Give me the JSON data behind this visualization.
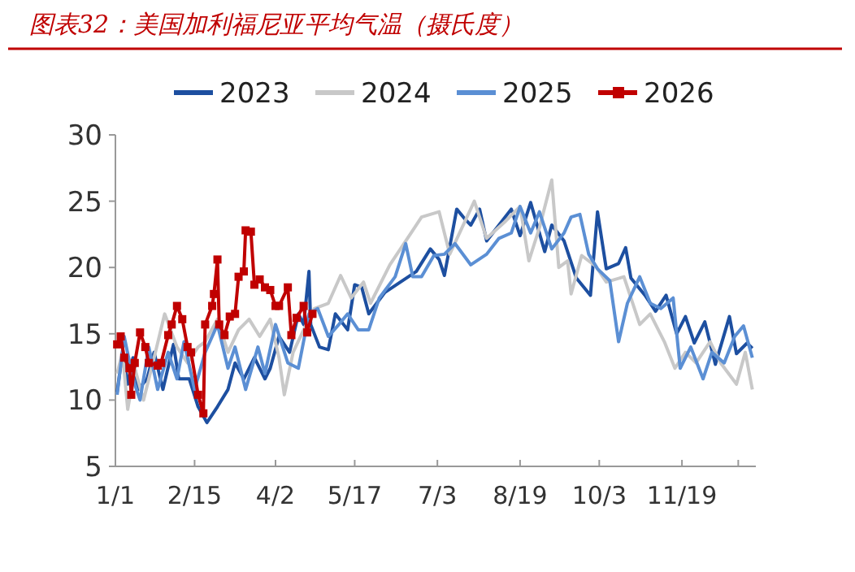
{
  "chart_data": {
    "type": "line",
    "title": "图表32：美国加利福尼亚平均气温（摄氏度）",
    "legend": "top",
    "line_style": "solid",
    "ylim": [
      5,
      30
    ],
    "yticks": [
      5,
      10,
      15,
      20,
      25,
      30
    ],
    "xlim": [
      "--01-01",
      "--12-31"
    ],
    "xticks": [
      {
        "value": "--01-01",
        "label": "1/1"
      },
      {
        "value": "--02-15",
        "label": "2/15"
      },
      {
        "value": "--04-02",
        "label": "4/2"
      },
      {
        "value": "--05-17",
        "label": "5/17"
      },
      {
        "value": "--07-03",
        "label": "7/3"
      },
      {
        "value": "--08-19",
        "label": "8/19"
      },
      {
        "value": "--10-03",
        "label": "10/3"
      },
      {
        "value": "--11-19",
        "label": "11/19"
      },
      {
        "value": "--12-21",
        "label": null
      }
    ],
    "series": [
      {
        "name": "2023",
        "color": "#1d4fa0",
        "marker": "none",
        "x": [
          "--01-02",
          "--01-05",
          "--01-08",
          "--01-11",
          "--01-14",
          "--01-19",
          "--01-23",
          "--01-28",
          "--02-03",
          "--02-06",
          "--02-12",
          "--02-17",
          "--02-22",
          "--02-28",
          "--03-06",
          "--03-10",
          "--03-15",
          "--03-21",
          "--03-27",
          "--03-30",
          "--04-04",
          "--04-10",
          "--04-15",
          "--04-18",
          "--04-21",
          "--04-22",
          "--04-27",
          "--05-02",
          "--05-06",
          "--05-13",
          "--05-17",
          "--05-21",
          "--05-25",
          "--06-03",
          "--06-12",
          "--06-21",
          "--06-29",
          "--07-04",
          "--07-07",
          "--07-14",
          "--07-19",
          "--07-22",
          "--07-27",
          "--07-31",
          "--08-07",
          "--08-14",
          "--08-19",
          "--08-25",
          "--09-02",
          "--09-06",
          "--09-13",
          "--09-20",
          "--09-28",
          "--10-02",
          "--10-07",
          "--10-14",
          "--10-18",
          "--10-21",
          "--10-29",
          "--11-04",
          "--11-10",
          "--11-16",
          "--11-21",
          "--11-26",
          "--12-02",
          "--12-08",
          "--12-16",
          "--12-20",
          "--12-26",
          "--12-29"
        ],
        "values": [
          10.6,
          13.6,
          11.2,
          13.2,
          10.8,
          11.6,
          13.6,
          10.8,
          14.2,
          11.6,
          11.6,
          9.5,
          8.3,
          9.5,
          10.8,
          12.8,
          11.6,
          13.2,
          11.6,
          12.4,
          14.8,
          13.6,
          16.5,
          15.7,
          19.7,
          15.7,
          14,
          13.8,
          16.5,
          15.3,
          18.7,
          18.5,
          16.5,
          18.1,
          18.9,
          19.7,
          21.4,
          20.6,
          19.4,
          24.4,
          23.6,
          23.2,
          24.4,
          22,
          23.2,
          24.4,
          22.4,
          24.9,
          21.2,
          23.2,
          22,
          19.2,
          17.9,
          24.2,
          19.9,
          20.3,
          21.5,
          19.2,
          17.9,
          16.7,
          17.9,
          15,
          16.3,
          14.3,
          15.9,
          12.7,
          16.3,
          13.5,
          14.3,
          13.9
        ]
      },
      {
        "name": "2024",
        "color": "#c8c8c8",
        "marker": "none",
        "x": [
          "--01-02",
          "--01-05",
          "--01-08",
          "--01-12",
          "--01-17",
          "--01-23",
          "--01-29",
          "--02-05",
          "--02-11",
          "--02-17",
          "--02-21",
          "--02-28",
          "--03-06",
          "--03-12",
          "--03-18",
          "--03-24",
          "--03-30",
          "--04-04",
          "--04-07",
          "--04-12",
          "--04-18",
          "--04-24",
          "--05-02",
          "--05-09",
          "--05-15",
          "--05-22",
          "--05-26",
          "--06-06",
          "--06-12",
          "--06-24",
          "--07-04",
          "--07-10",
          "--07-24",
          "--07-31",
          "--08-10",
          "--08-19",
          "--08-24",
          "--08-30",
          "--09-06",
          "--09-10",
          "--09-15",
          "--09-17",
          "--09-23",
          "--10-01",
          "--10-07",
          "--10-17",
          "--10-21",
          "--10-26",
          "--11-01",
          "--11-09",
          "--11-15",
          "--11-21",
          "--11-27",
          "--12-05",
          "--12-11",
          "--12-20",
          "--12-25",
          "--12-29"
        ],
        "values": [
          12,
          13.6,
          9.3,
          12.4,
          10,
          13.2,
          16.5,
          14,
          12.8,
          14,
          14.4,
          16.1,
          13.6,
          15.3,
          16.1,
          14.8,
          16.1,
          13.2,
          10.4,
          13.6,
          15.3,
          16.9,
          17.3,
          19.4,
          17.7,
          18.9,
          17.3,
          20.2,
          21.4,
          23.8,
          24.2,
          21,
          25,
          22.2,
          23.4,
          24.6,
          20.5,
          23,
          26.6,
          20,
          20.5,
          18,
          20.9,
          20.1,
          18.9,
          19.3,
          17.7,
          15.7,
          16.5,
          14.4,
          12.4,
          13.6,
          12.8,
          14.4,
          12.8,
          11.2,
          13.6,
          10.8
        ]
      },
      {
        "name": "2025",
        "color": "#5b8fd4",
        "marker": "none",
        "x": [
          "--01-02",
          "--01-06",
          "--01-11",
          "--01-15",
          "--01-20",
          "--01-25",
          "--01-31",
          "--02-05",
          "--02-09",
          "--02-15",
          "--02-21",
          "--02-28",
          "--03-06",
          "--03-10",
          "--03-16",
          "--03-23",
          "--03-27",
          "--04-02",
          "--04-09",
          "--04-15",
          "--04-21",
          "--04-26",
          "--05-02",
          "--05-08",
          "--05-13",
          "--05-19",
          "--05-25",
          "--05-31",
          "--06-09",
          "--06-15",
          "--06-19",
          "--06-24",
          "--07-01",
          "--07-07",
          "--07-13",
          "--07-22",
          "--07-31",
          "--08-07",
          "--08-14",
          "--08-19",
          "--08-25",
          "--08-30",
          "--09-06",
          "--09-13",
          "--09-17",
          "--09-22",
          "--09-27",
          "--10-02",
          "--10-09",
          "--10-14",
          "--10-19",
          "--10-26",
          "--11-01",
          "--11-07",
          "--11-14",
          "--11-18",
          "--11-24",
          "--12-01",
          "--12-06",
          "--12-13",
          "--12-19",
          "--12-24",
          "--12-29"
        ],
        "values": [
          10.4,
          14.8,
          11.6,
          10,
          14,
          10.8,
          13.6,
          11.6,
          14.4,
          10.8,
          13.6,
          15.7,
          12.4,
          14,
          10.8,
          14,
          12,
          15.7,
          12.8,
          12.4,
          16.5,
          16.9,
          14.8,
          15.7,
          16.5,
          15.3,
          15.3,
          17.7,
          19.3,
          21.8,
          19.3,
          19.3,
          20.9,
          21,
          21.8,
          20.2,
          21,
          22.2,
          22.6,
          24.6,
          22.6,
          24.2,
          21.4,
          22.6,
          23.8,
          24,
          21,
          19.9,
          19,
          14.4,
          17.3,
          19.3,
          17.3,
          16.9,
          17.7,
          12.4,
          14,
          11.6,
          13.6,
          12.8,
          14.8,
          15.6,
          13.2
        ]
      },
      {
        "name": "2026",
        "color": "#c00000",
        "marker": "square",
        "x": [
          "--01-02",
          "--01-04",
          "--01-06",
          "--01-09",
          "--01-10",
          "--01-12",
          "--01-15",
          "--01-18",
          "--01-20",
          "--01-25",
          "--01-27",
          "--01-31",
          "--02-02",
          "--02-05",
          "--02-08",
          "--02-11",
          "--02-13",
          "--02-17",
          "--02-20",
          "--02-21",
          "--02-25",
          "--02-26",
          "--02-28",
          "--03-01",
          "--03-04",
          "--03-07",
          "--03-10",
          "--03-12",
          "--03-15",
          "--03-16",
          "--03-19",
          "--03-21",
          "--03-24",
          "--03-27",
          "--03-30",
          "--04-02",
          "--04-04",
          "--04-09",
          "--04-11",
          "--04-14",
          "--04-18",
          "--04-20",
          "--04-23"
        ],
        "values": [
          14.2,
          14.8,
          13.2,
          12.4,
          10.4,
          12.8,
          15.1,
          14,
          12.8,
          12.6,
          12.8,
          14.9,
          15.7,
          17.1,
          16.1,
          14,
          13.6,
          10.4,
          9,
          15.7,
          17.1,
          18,
          20.6,
          15.7,
          14.9,
          16.3,
          16.5,
          19.3,
          19.7,
          22.8,
          22.7,
          18.7,
          19.1,
          18.5,
          18.3,
          17.1,
          17.1,
          18.5,
          14.9,
          16.2,
          17.1,
          15.1,
          16.5
        ]
      }
    ]
  }
}
